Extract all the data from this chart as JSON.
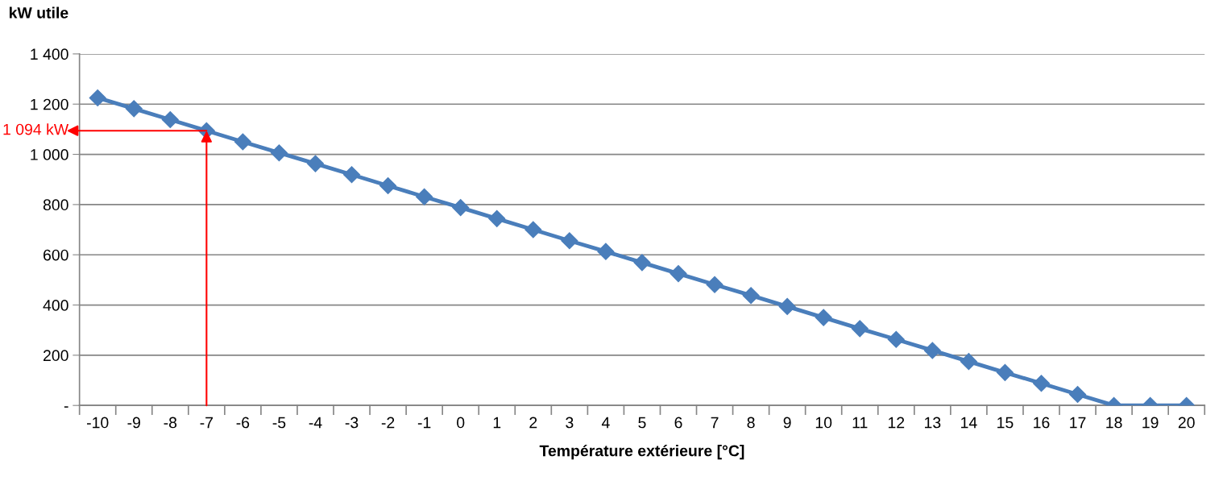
{
  "chart_data": {
    "type": "line",
    "xlabel": "Température extérieure [°C]",
    "ylabel": "kW utile",
    "categories": [
      "-10",
      "-9",
      "-8",
      "-7",
      "-6",
      "-5",
      "-4",
      "-3",
      "-2",
      "-1",
      "0",
      "1",
      "2",
      "3",
      "4",
      "5",
      "6",
      "7",
      "8",
      "9",
      "10",
      "11",
      "12",
      "13",
      "14",
      "15",
      "16",
      "17",
      "18",
      "19",
      "20"
    ],
    "series": [
      {
        "color": "#4a7ebb",
        "values": [
          1225,
          1182,
          1138,
          1094,
          1050,
          1006,
          963,
          919,
          875,
          831,
          788,
          744,
          700,
          656,
          613,
          569,
          525,
          481,
          438,
          394,
          350,
          306,
          263,
          219,
          175,
          131,
          88,
          44,
          0,
          0,
          0
        ]
      }
    ],
    "ylim": [
      0,
      1400
    ],
    "yticks": [
      {
        "value": 0,
        "label": "-"
      },
      200,
      400,
      600,
      800,
      {
        "value": 1000,
        "label": "1 000"
      },
      {
        "value": 1200,
        "label": "1 200"
      },
      {
        "value": 1400,
        "label": "1 400"
      }
    ],
    "annotations": [
      {
        "text": "1 094 kW",
        "x": "-7",
        "y": 1094
      }
    ],
    "grid": "y",
    "marker": "diamond",
    "line_style": "solid"
  }
}
